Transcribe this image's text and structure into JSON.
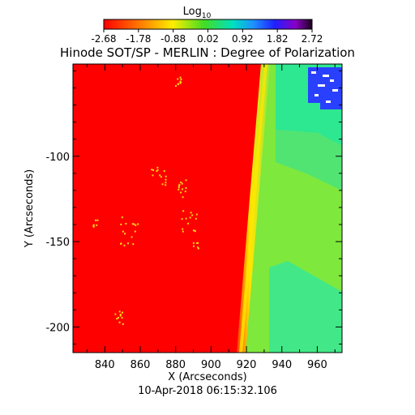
{
  "chart_data": {
    "type": "heatmap",
    "title": "Hinode SOT/SP - MERLIN : Degree of Polarization",
    "xlabel": "X (Arcseconds)",
    "ylabel": "Y (Arcseconds)",
    "footer": "10-Apr-2018 06:15:32.106",
    "xlim": [
      822,
      974
    ],
    "ylim": [
      -215,
      -46
    ],
    "x_ticks": [
      840,
      860,
      880,
      900,
      920,
      940,
      960
    ],
    "y_ticks": [
      -100,
      -150,
      -200
    ],
    "colorbar": {
      "label_base": "Log",
      "label_sub": "10",
      "range": [
        -2.68,
        2.72
      ],
      "tick_labels": [
        "-2.68",
        "-1.78",
        "-0.88",
        "0.02",
        "0.92",
        "1.82",
        "2.72"
      ]
    },
    "regions": [
      {
        "name": "disk",
        "level": -2.68,
        "color": "#ff0000"
      },
      {
        "name": "limb",
        "level": -1.6,
        "color": "#ffe600"
      },
      {
        "name": "off-limb",
        "level": -0.3,
        "color": "#7ee83c"
      },
      {
        "name": "off-limb-far",
        "level": 0.5,
        "color": "#1fe6a0"
      },
      {
        "name": "noise-patch",
        "level": 1.6,
        "color": "#1f2cff"
      }
    ],
    "limb": {
      "x_at_top": 930,
      "x_at_bottom": 914
    }
  }
}
